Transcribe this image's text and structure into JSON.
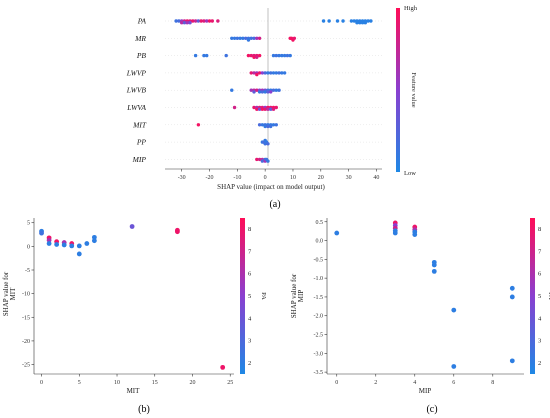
{
  "colors": {
    "low": "#1e88e5",
    "high": "#ff0d57"
  },
  "chart_data": [
    {
      "panel_label": "(a)",
      "type": "scatter",
      "subtype": "shap_beeswarm",
      "xlabel": "SHAP value (impact on model output)",
      "xlim": [
        -36,
        42
      ],
      "xticks": [
        -30,
        -20,
        -10,
        0,
        10,
        20,
        30,
        40
      ],
      "colorbar": {
        "label": "Feature value",
        "high_label": "High",
        "low_label": "Low"
      },
      "features": [
        {
          "name": "PA",
          "points": [
            {
              "x": -32,
              "v": 0.15
            },
            {
              "x": -31,
              "v": 0.2
            },
            {
              "x": -30,
              "v": 0.55
            },
            {
              "x": -30,
              "v": 0.7
            },
            {
              "x": -29,
              "v": 0.8
            },
            {
              "x": -29,
              "v": 0.3
            },
            {
              "x": -28,
              "v": 0.9
            },
            {
              "x": -28,
              "v": 0.6
            },
            {
              "x": -27,
              "v": 0.85
            },
            {
              "x": -27,
              "v": 0.4
            },
            {
              "x": -26,
              "v": 0.9
            },
            {
              "x": -25,
              "v": 0.75
            },
            {
              "x": -24,
              "v": 0.3
            },
            {
              "x": -23,
              "v": 0.9
            },
            {
              "x": -22,
              "v": 0.85
            },
            {
              "x": -21,
              "v": 0.6
            },
            {
              "x": -20,
              "v": 0.95
            },
            {
              "x": -19,
              "v": 0.9
            },
            {
              "x": -17,
              "v": 0.85
            },
            {
              "x": 21,
              "v": 0.05
            },
            {
              "x": 23,
              "v": 0.05
            },
            {
              "x": 26,
              "v": 0.05
            },
            {
              "x": 28,
              "v": 0.05
            },
            {
              "x": 31,
              "v": 0.05
            },
            {
              "x": 32,
              "v": 0.05
            },
            {
              "x": 33,
              "v": 0.05
            },
            {
              "x": 33,
              "v": 0.05
            },
            {
              "x": 34,
              "v": 0.05
            },
            {
              "x": 34,
              "v": 0.05
            },
            {
              "x": 35,
              "v": 0.05
            },
            {
              "x": 35,
              "v": 0.05
            },
            {
              "x": 36,
              "v": 0.05
            },
            {
              "x": 36,
              "v": 0.05
            },
            {
              "x": 37,
              "v": 0.05
            },
            {
              "x": 38,
              "v": 0.05
            }
          ]
        },
        {
          "name": "MR",
          "points": [
            {
              "x": -12,
              "v": 0.1
            },
            {
              "x": -11,
              "v": 0.1
            },
            {
              "x": -10,
              "v": 0.15
            },
            {
              "x": -9,
              "v": 0.1
            },
            {
              "x": -8,
              "v": 0.1
            },
            {
              "x": -7,
              "v": 0.2
            },
            {
              "x": -6,
              "v": 0.15
            },
            {
              "x": -6,
              "v": 0.1
            },
            {
              "x": -5,
              "v": 0.15
            },
            {
              "x": -4,
              "v": 0.2
            },
            {
              "x": -3,
              "v": 0.6
            },
            {
              "x": -2,
              "v": 0.8
            },
            {
              "x": 9,
              "v": 0.95
            },
            {
              "x": 9.5,
              "v": 0.95
            },
            {
              "x": 10,
              "v": 0.95
            },
            {
              "x": 10.5,
              "v": 0.9
            }
          ]
        },
        {
          "name": "PB",
          "points": [
            {
              "x": -25,
              "v": 0.1
            },
            {
              "x": -22,
              "v": 0.1
            },
            {
              "x": -21,
              "v": 0.1
            },
            {
              "x": -14,
              "v": 0.15
            },
            {
              "x": -6,
              "v": 0.95
            },
            {
              "x": -5,
              "v": 0.9
            },
            {
              "x": -4,
              "v": 0.85
            },
            {
              "x": -4,
              "v": 0.95
            },
            {
              "x": -3,
              "v": 0.9
            },
            {
              "x": -3,
              "v": 0.8
            },
            {
              "x": -2,
              "v": 0.95
            },
            {
              "x": 3,
              "v": 0.1
            },
            {
              "x": 4,
              "v": 0.15
            },
            {
              "x": 5,
              "v": 0.1
            },
            {
              "x": 6,
              "v": 0.1
            },
            {
              "x": 7,
              "v": 0.1
            },
            {
              "x": 8,
              "v": 0.15
            },
            {
              "x": 9,
              "v": 0.1
            }
          ]
        },
        {
          "name": "LWVP",
          "points": [
            {
              "x": -5,
              "v": 0.9
            },
            {
              "x": -4,
              "v": 0.7
            },
            {
              "x": -3,
              "v": 0.6
            },
            {
              "x": -3,
              "v": 0.95
            },
            {
              "x": -2,
              "v": 0.9
            },
            {
              "x": -1,
              "v": 0.5
            },
            {
              "x": 0,
              "v": 0.2
            },
            {
              "x": 1,
              "v": 0.1
            },
            {
              "x": 2,
              "v": 0.15
            },
            {
              "x": 3,
              "v": 0.1
            },
            {
              "x": 4,
              "v": 0.1
            },
            {
              "x": 5,
              "v": 0.15
            },
            {
              "x": 6,
              "v": 0.1
            },
            {
              "x": 7,
              "v": 0.1
            }
          ]
        },
        {
          "name": "LWVB",
          "points": [
            {
              "x": -12,
              "v": 0.1
            },
            {
              "x": -5,
              "v": 0.6
            },
            {
              "x": -4,
              "v": 0.7
            },
            {
              "x": -4,
              "v": 0.3
            },
            {
              "x": -3,
              "v": 0.8
            },
            {
              "x": -2,
              "v": 0.5
            },
            {
              "x": -2,
              "v": 0.1
            },
            {
              "x": -1,
              "v": 0.6
            },
            {
              "x": -1,
              "v": 0.2
            },
            {
              "x": 0,
              "v": 0.4
            },
            {
              "x": 0,
              "v": 0.1
            },
            {
              "x": 1,
              "v": 0.15
            },
            {
              "x": 1,
              "v": 0.3
            },
            {
              "x": 2,
              "v": 0.1
            },
            {
              "x": 2,
              "v": 0.5
            },
            {
              "x": 3,
              "v": 0.2
            },
            {
              "x": 4,
              "v": 0.1
            },
            {
              "x": 5,
              "v": 0.15
            }
          ]
        },
        {
          "name": "LWVA",
          "points": [
            {
              "x": -11,
              "v": 0.8
            },
            {
              "x": -4,
              "v": 0.9
            },
            {
              "x": -3,
              "v": 0.6
            },
            {
              "x": -3,
              "v": 0.95
            },
            {
              "x": -2,
              "v": 0.9
            },
            {
              "x": -2,
              "v": 0.4
            },
            {
              "x": -1,
              "v": 0.85
            },
            {
              "x": -1,
              "v": 0.95
            },
            {
              "x": 0,
              "v": 0.5
            },
            {
              "x": 0,
              "v": 0.9
            },
            {
              "x": 1,
              "v": 0.95
            },
            {
              "x": 1,
              "v": 0.7
            },
            {
              "x": 2,
              "v": 0.9
            },
            {
              "x": 2,
              "v": 0.3
            },
            {
              "x": 3,
              "v": 0.95
            },
            {
              "x": 3,
              "v": 0.85
            },
            {
              "x": 4,
              "v": 0.9
            }
          ]
        },
        {
          "name": "MIT",
          "points": [
            {
              "x": -24,
              "v": 0.95
            },
            {
              "x": -2,
              "v": 0.2
            },
            {
              "x": -1,
              "v": 0.1
            },
            {
              "x": 0,
              "v": 0.15
            },
            {
              "x": 0,
              "v": 0.1
            },
            {
              "x": 1,
              "v": 0.1
            },
            {
              "x": 1,
              "v": 0.2
            },
            {
              "x": 2,
              "v": 0.1
            },
            {
              "x": 2,
              "v": 0.15
            },
            {
              "x": 3,
              "v": 0.1
            },
            {
              "x": 4,
              "v": 0.15
            }
          ]
        },
        {
          "name": "PP",
          "points": [
            {
              "x": -1,
              "v": 0.1
            },
            {
              "x": -0.5,
              "v": 0.2
            },
            {
              "x": 0,
              "v": 0.15
            },
            {
              "x": 0,
              "v": 0.1
            },
            {
              "x": 0.5,
              "v": 0.1
            },
            {
              "x": 1,
              "v": 0.2
            }
          ]
        },
        {
          "name": "MIP",
          "points": [
            {
              "x": -3,
              "v": 0.9
            },
            {
              "x": -2,
              "v": 0.8
            },
            {
              "x": -1,
              "v": 0.7
            },
            {
              "x": -1,
              "v": 0.2
            },
            {
              "x": 0,
              "v": 0.1
            },
            {
              "x": 0,
              "v": 0.6
            },
            {
              "x": 0.5,
              "v": 0.15
            },
            {
              "x": 1,
              "v": 0.1
            }
          ]
        }
      ]
    },
    {
      "panel_label": "(b)",
      "type": "scatter",
      "subtype": "shap_dependence",
      "xlabel": "MIT",
      "ylabel_line1": "SHAP value for",
      "ylabel_line2": "MIT",
      "xlim": [
        -1,
        25.5
      ],
      "ylim": [
        -27,
        6
      ],
      "xticks": [
        0,
        5,
        10,
        15,
        20,
        25
      ],
      "yticks": [
        5,
        0,
        -5,
        -10,
        -15,
        -20,
        -25
      ],
      "colorbar": {
        "label": "PA",
        "min": 1.5,
        "max": 8.5,
        "ticks": [
          8,
          7,
          6,
          5,
          4,
          3,
          2
        ]
      },
      "points": [
        {
          "x": 0,
          "y": 3.2,
          "c": 2
        },
        {
          "x": 0,
          "y": 2.8,
          "c": 2.5
        },
        {
          "x": 1,
          "y": 1.8,
          "c": 8
        },
        {
          "x": 1,
          "y": 1.3,
          "c": 6
        },
        {
          "x": 1,
          "y": 0.6,
          "c": 2
        },
        {
          "x": 2,
          "y": 1.0,
          "c": 8
        },
        {
          "x": 2,
          "y": 0.4,
          "c": 2
        },
        {
          "x": 3,
          "y": 0.8,
          "c": 6
        },
        {
          "x": 3,
          "y": 0.3,
          "c": 2
        },
        {
          "x": 4,
          "y": 0.6,
          "c": 8
        },
        {
          "x": 4,
          "y": 0.1,
          "c": 2
        },
        {
          "x": 5,
          "y": -1.6,
          "c": 2
        },
        {
          "x": 5,
          "y": 0.1,
          "c": 2
        },
        {
          "x": 6,
          "y": 0.6,
          "c": 2
        },
        {
          "x": 7,
          "y": 1.2,
          "c": 2
        },
        {
          "x": 7,
          "y": 1.9,
          "c": 2
        },
        {
          "x": 12,
          "y": 4.2,
          "c": 4
        },
        {
          "x": 18,
          "y": 3.4,
          "c": 8
        },
        {
          "x": 18,
          "y": 3.1,
          "c": 8
        },
        {
          "x": 24,
          "y": -25.6,
          "c": 8
        }
      ]
    },
    {
      "panel_label": "(c)",
      "type": "scatter",
      "subtype": "shap_dependence",
      "xlabel": "MIP",
      "ylabel_line1": "SHAP value for",
      "ylabel_line2": "MIP",
      "xlim": [
        -0.5,
        9.6
      ],
      "ylim": [
        -3.55,
        0.6
      ],
      "xticks": [
        0,
        2,
        4,
        6,
        8
      ],
      "yticks": [
        0.5,
        0.0,
        -0.5,
        -1.0,
        -1.5,
        -2.0,
        -2.5,
        -3.0,
        -3.5
      ],
      "colorbar": {
        "label": "PA",
        "min": 1.5,
        "max": 8.5,
        "ticks": [
          8,
          7,
          6,
          5,
          4,
          3,
          2
        ]
      },
      "points": [
        {
          "x": 0,
          "y": 0.2,
          "c": 2
        },
        {
          "x": 3,
          "y": 0.47,
          "c": 8
        },
        {
          "x": 3,
          "y": 0.4,
          "c": 5
        },
        {
          "x": 3,
          "y": 0.33,
          "c": 7
        },
        {
          "x": 3,
          "y": 0.26,
          "c": 2
        },
        {
          "x": 3,
          "y": 0.2,
          "c": 2
        },
        {
          "x": 4,
          "y": 0.36,
          "c": 8
        },
        {
          "x": 4,
          "y": 0.29,
          "c": 6
        },
        {
          "x": 4,
          "y": 0.23,
          "c": 2
        },
        {
          "x": 4,
          "y": 0.16,
          "c": 2
        },
        {
          "x": 5,
          "y": -0.58,
          "c": 2
        },
        {
          "x": 5,
          "y": -0.65,
          "c": 2
        },
        {
          "x": 5,
          "y": -0.82,
          "c": 2
        },
        {
          "x": 6,
          "y": -1.85,
          "c": 2
        },
        {
          "x": 6,
          "y": -3.35,
          "c": 2
        },
        {
          "x": 9,
          "y": -1.27,
          "c": 2
        },
        {
          "x": 9,
          "y": -1.5,
          "c": 2
        },
        {
          "x": 9,
          "y": -3.2,
          "c": 2
        }
      ]
    }
  ]
}
